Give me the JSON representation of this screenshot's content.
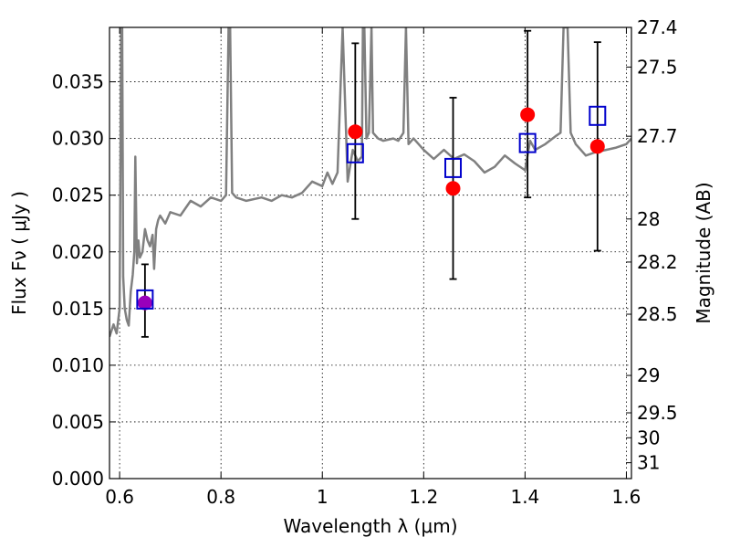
{
  "chart_data": {
    "type": "scatter",
    "title": "",
    "xlabel": "Wavelength  λ (μm)",
    "ylabel": "Flux  Fν  ( μJy )",
    "ylabel_right": "Magnitude (AB)",
    "xlim": [
      0.58,
      1.61
    ],
    "ylim": [
      0.0,
      0.0398
    ],
    "grid": true,
    "x_ticks": [
      0.6,
      0.8,
      1.0,
      1.2,
      1.4,
      1.6
    ],
    "x_tick_labels": [
      "0.6",
      "0.8",
      "1",
      "1.2",
      "1.4",
      "1.6"
    ],
    "y_ticks": [
      0.0,
      0.005,
      0.01,
      0.015,
      0.02,
      0.025,
      0.03,
      0.035
    ],
    "y_tick_labels": [
      "0.000",
      "0.005",
      "0.010",
      "0.015",
      "0.020",
      "0.025",
      "0.030",
      "0.035"
    ],
    "right_ticks": [
      {
        "label": "27.4",
        "flux": 0.0398
      },
      {
        "label": "27.5",
        "flux": 0.0363
      },
      {
        "label": "27.7",
        "flux": 0.0302
      },
      {
        "label": "28",
        "flux": 0.0229
      },
      {
        "label": "28.2",
        "flux": 0.0191
      },
      {
        "label": "28.5",
        "flux": 0.0145
      },
      {
        "label": "29",
        "flux": 0.0091
      },
      {
        "label": "29.5",
        "flux": 0.0058
      },
      {
        "label": "30",
        "flux": 0.0036
      },
      {
        "label": "31",
        "flux": 0.0014
      }
    ],
    "spectrum": {
      "name": "model spectrum",
      "color": "#808080",
      "x": [
        0.58,
        0.588,
        0.594,
        0.6,
        0.603,
        0.605,
        0.607,
        0.61,
        0.614,
        0.618,
        0.622,
        0.626,
        0.629,
        0.631,
        0.634,
        0.637,
        0.64,
        0.645,
        0.65,
        0.655,
        0.66,
        0.665,
        0.668,
        0.672,
        0.676,
        0.68,
        0.69,
        0.7,
        0.72,
        0.74,
        0.76,
        0.78,
        0.8,
        0.81,
        0.815,
        0.818,
        0.822,
        0.83,
        0.85,
        0.88,
        0.9,
        0.92,
        0.94,
        0.96,
        0.98,
        1.0,
        1.01,
        1.02,
        1.03,
        1.04,
        1.05,
        1.06,
        1.07,
        1.078,
        1.08,
        1.083,
        1.087,
        1.092,
        1.097,
        1.1,
        1.11,
        1.12,
        1.14,
        1.15,
        1.16,
        1.165,
        1.17,
        1.18,
        1.2,
        1.22,
        1.24,
        1.26,
        1.28,
        1.3,
        1.32,
        1.34,
        1.36,
        1.38,
        1.4,
        1.41,
        1.42,
        1.44,
        1.46,
        1.47,
        1.476,
        1.484,
        1.49,
        1.5,
        1.52,
        1.54,
        1.56,
        1.58,
        1.6,
        1.61
      ],
      "y": [
        0.0125,
        0.0136,
        0.0128,
        0.015,
        0.0398,
        0.0398,
        0.0178,
        0.015,
        0.014,
        0.0135,
        0.0165,
        0.018,
        0.02,
        0.0284,
        0.019,
        0.021,
        0.0195,
        0.02,
        0.022,
        0.021,
        0.0205,
        0.0215,
        0.0185,
        0.022,
        0.0228,
        0.0232,
        0.0225,
        0.0235,
        0.0232,
        0.0245,
        0.024,
        0.0248,
        0.0245,
        0.025,
        0.0398,
        0.0398,
        0.0252,
        0.0248,
        0.0245,
        0.0248,
        0.0245,
        0.025,
        0.0248,
        0.0252,
        0.0262,
        0.0258,
        0.027,
        0.026,
        0.027,
        0.0398,
        0.0262,
        0.029,
        0.028,
        0.0284,
        0.0398,
        0.0398,
        0.03,
        0.0305,
        0.0398,
        0.0305,
        0.03,
        0.0298,
        0.03,
        0.0298,
        0.0305,
        0.0398,
        0.0295,
        0.03,
        0.029,
        0.0282,
        0.029,
        0.0282,
        0.0286,
        0.028,
        0.027,
        0.0275,
        0.0285,
        0.0278,
        0.0272,
        0.0298,
        0.029,
        0.0295,
        0.0302,
        0.0305,
        0.0398,
        0.0398,
        0.0305,
        0.0295,
        0.0285,
        0.0288,
        0.029,
        0.0292,
        0.0295,
        0.03
      ]
    },
    "series": [
      {
        "name": "model photometry",
        "marker": "square-open",
        "color": "#0000cc",
        "x": [
          0.65,
          1.065,
          1.258,
          1.405,
          1.543
        ],
        "y": [
          0.0158,
          0.0287,
          0.0274,
          0.0296,
          0.032
        ]
      },
      {
        "name": "observed photometry",
        "marker": "circle",
        "color": "#ff0000",
        "x": [
          1.065,
          1.258,
          1.405,
          1.543
        ],
        "y": [
          0.0306,
          0.0256,
          0.0321,
          0.0293
        ]
      },
      {
        "name": "observed photometry (first band)",
        "marker": "circle",
        "color": "#9900bb",
        "x": [
          0.65
        ],
        "y": [
          0.0155
        ]
      }
    ],
    "errorbars": [
      {
        "x": 0.65,
        "low": 0.0125,
        "high": 0.0189
      },
      {
        "x": 1.065,
        "low": 0.0229,
        "high": 0.0384
      },
      {
        "x": 1.258,
        "low": 0.0176,
        "high": 0.0336
      },
      {
        "x": 1.405,
        "low": 0.0248,
        "high": 0.0395
      },
      {
        "x": 1.543,
        "low": 0.0201,
        "high": 0.0385
      }
    ]
  }
}
